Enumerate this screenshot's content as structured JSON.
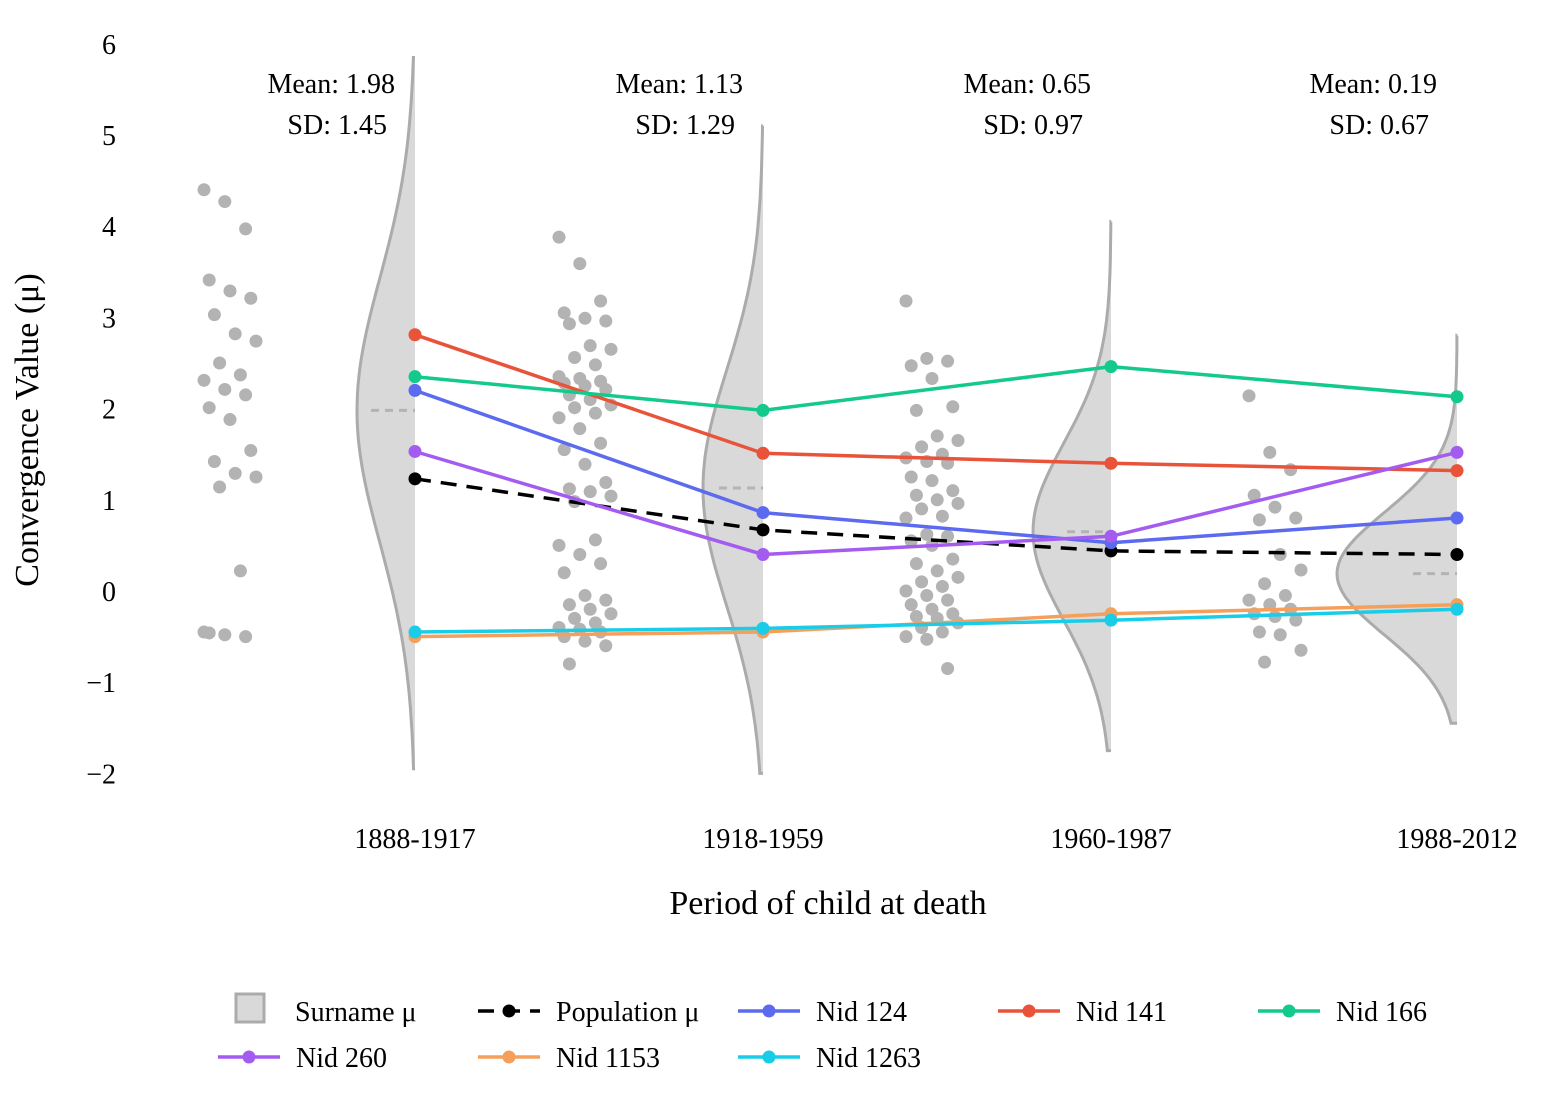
{
  "chart_data": {
    "type": "line",
    "xlabel": "Period of child at death",
    "ylabel": "Convergence Value (μ)",
    "ylim": [
      -2,
      6
    ],
    "yticks": [
      "6",
      "5",
      "4",
      "3",
      "2",
      "1",
      "0",
      "−1",
      "−2"
    ],
    "yticks_values": [
      6,
      5,
      4,
      3,
      2,
      1,
      0,
      -1,
      -2
    ],
    "categories": [
      "1888-1917",
      "1918-1959",
      "1960-1987",
      "1988-2012"
    ],
    "period_stats": [
      {
        "mean_label": "Mean: 1.98",
        "sd_label": "SD: 1.45",
        "mean": 1.98,
        "sd": 1.45
      },
      {
        "mean_label": "Mean: 1.13",
        "sd_label": "SD: 1.29",
        "mean": 1.13,
        "sd": 1.29
      },
      {
        "mean_label": "Mean: 0.65",
        "sd_label": "SD: 0.97",
        "mean": 0.65,
        "sd": 0.97
      },
      {
        "mean_label": "Mean: 0.19",
        "sd_label": "SD: 0.67",
        "mean": 0.19,
        "sd": 0.67
      }
    ],
    "density_ranges": [
      [
        -1.95,
        5.85
      ],
      [
        -2.0,
        5.1
      ],
      [
        -1.75,
        4.05
      ],
      [
        -1.45,
        2.8
      ]
    ],
    "surname_points": [
      [
        4.4,
        4.27,
        3.97,
        3.41,
        3.29,
        3.21,
        3.03,
        2.82,
        2.74,
        2.5,
        2.37,
        2.31,
        2.21,
        2.15,
        2.01,
        1.88,
        1.54,
        1.42,
        1.29,
        1.25,
        1.14,
        0.22,
        -0.45,
        -0.48,
        -0.5,
        -0.46
      ],
      [
        3.88,
        3.59,
        3.18,
        3.05,
        2.99,
        2.96,
        2.93,
        2.69,
        2.65,
        2.56,
        2.48,
        2.35,
        2.33,
        2.3,
        2.28,
        2.25,
        2.21,
        2.15,
        2.1,
        2.04,
        2.01,
        1.95,
        1.9,
        1.78,
        1.62,
        1.55,
        1.39,
        1.19,
        1.12,
        1.09,
        1.04,
        0.98,
        0.56,
        0.5,
        0.4,
        0.3,
        0.2,
        -0.05,
        -0.1,
        -0.15,
        -0.2,
        -0.25,
        -0.3,
        -0.35,
        -0.4,
        -0.42,
        -0.45,
        -0.5,
        -0.55,
        -0.6,
        -0.8
      ],
      [
        3.18,
        2.55,
        2.52,
        2.47,
        2.33,
        2.02,
        1.98,
        1.7,
        1.65,
        1.58,
        1.5,
        1.46,
        1.42,
        1.4,
        1.25,
        1.21,
        1.1,
        1.05,
        1.0,
        0.96,
        0.9,
        0.82,
        0.8,
        0.62,
        0.6,
        0.55,
        0.5,
        0.35,
        0.3,
        0.22,
        0.15,
        0.1,
        0.05,
        0.0,
        -0.05,
        -0.1,
        -0.15,
        -0.2,
        -0.25,
        -0.28,
        -0.3,
        -0.35,
        -0.4,
        -0.45,
        -0.5,
        -0.53,
        -0.85
      ],
      [
        2.14,
        1.52,
        1.33,
        1.05,
        0.92,
        0.8,
        0.78,
        0.4,
        0.23,
        0.08,
        -0.05,
        -0.1,
        -0.15,
        -0.2,
        -0.25,
        -0.28,
        -0.32,
        -0.45,
        -0.48,
        -0.65,
        -0.78
      ]
    ],
    "series": [
      {
        "name": "Population μ",
        "color": "#000000",
        "dashed": true,
        "values": [
          1.23,
          0.67,
          0.44,
          0.4
        ]
      },
      {
        "name": "Nid 124",
        "color": "#5c6af0",
        "values": [
          2.2,
          0.86,
          0.53,
          0.8
        ]
      },
      {
        "name": "Nid 141",
        "color": "#e8533a",
        "values": [
          2.81,
          1.51,
          1.4,
          1.32
        ]
      },
      {
        "name": "Nid 166",
        "color": "#14c98c",
        "values": [
          2.35,
          1.98,
          2.46,
          2.13
        ]
      },
      {
        "name": "Nid 260",
        "color": "#a45cf0",
        "values": [
          1.53,
          0.4,
          0.6,
          1.52
        ]
      },
      {
        "name": "Nid 1153",
        "color": "#f5a05a",
        "values": [
          -0.5,
          -0.45,
          -0.25,
          -0.15
        ]
      },
      {
        "name": "Nid 1263",
        "color": "#19cde8",
        "values": [
          -0.45,
          -0.41,
          -0.32,
          -0.2
        ]
      }
    ],
    "legend": {
      "surname_label": "Surname μ",
      "position": "bottom",
      "items": [
        "Population μ",
        "Nid 124",
        "Nid 141",
        "Nid 166",
        "Nid 260",
        "Nid 1153",
        "Nid 1263"
      ]
    },
    "colors": {
      "density_fill": "#d9d9d9",
      "density_stroke": "#ababab",
      "point": "#b3b3b3",
      "mean_marker": "#b3b3b3"
    }
  }
}
